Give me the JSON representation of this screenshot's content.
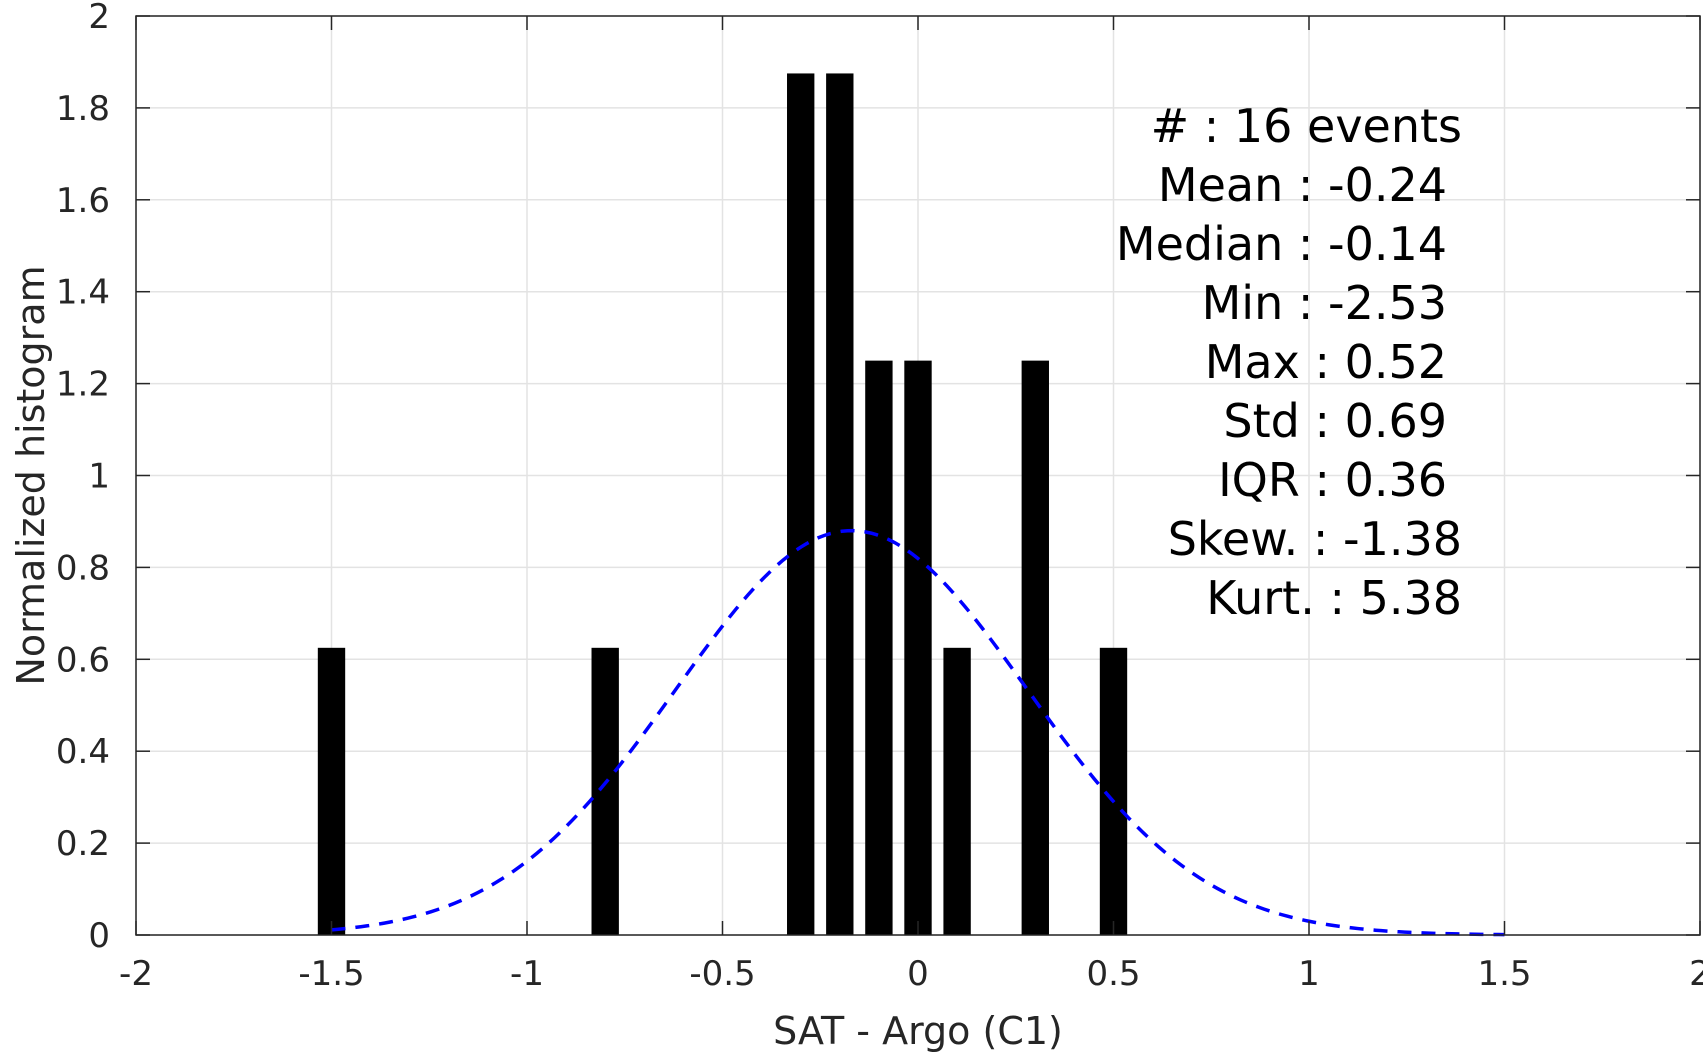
{
  "chart_data": {
    "type": "bar",
    "xlabel": "SAT - Argo (C1)",
    "ylabel": "Normalized histogram",
    "xlim": [
      -2,
      2
    ],
    "ylim": [
      0,
      2
    ],
    "xticks": [
      -2,
      -1.5,
      -1,
      -0.5,
      0,
      0.5,
      1,
      1.5,
      2
    ],
    "yticks": [
      0,
      0.2,
      0.4,
      0.6,
      0.8,
      1,
      1.2,
      1.4,
      1.6,
      1.8,
      2
    ],
    "grid": true,
    "bar_color": "#000000",
    "bars": [
      {
        "x": -1.5,
        "value": 0.625
      },
      {
        "x": -0.8,
        "value": 0.625
      },
      {
        "x": -0.3,
        "value": 1.875
      },
      {
        "x": -0.2,
        "value": 1.875
      },
      {
        "x": -0.1,
        "value": 1.25
      },
      {
        "x": 0.0,
        "value": 1.25
      },
      {
        "x": 0.1,
        "value": 0.625
      },
      {
        "x": 0.3,
        "value": 1.25
      },
      {
        "x": 0.5,
        "value": 0.625
      }
    ],
    "bar_width": 0.07,
    "fit_curve": {
      "type": "normal",
      "style": "dashed",
      "color": "#0000ff",
      "mean": -0.17,
      "peak": 0.88,
      "sigma": 0.45,
      "x_range": [
        -1.5,
        1.5
      ]
    },
    "stats": [
      "#  : 16 events",
      "Mean : -0.24",
      "Median : -0.14",
      "Min : -2.53",
      "Max : 0.52",
      "Std : 0.69",
      "IQR : 0.36",
      "Skew. : -1.38",
      "Kurt. : 5.38"
    ]
  }
}
